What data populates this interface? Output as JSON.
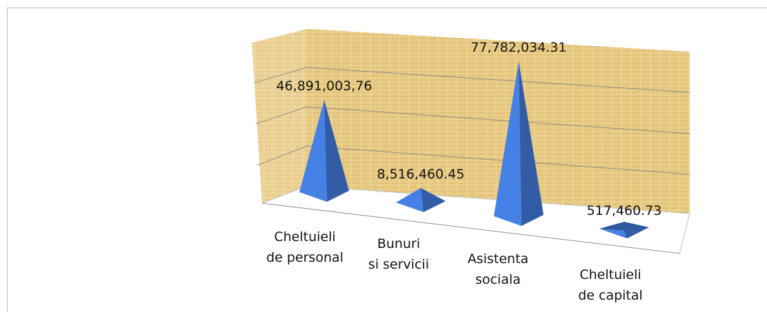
{
  "chart_data": {
    "type": "pyramid3d",
    "categories": [
      "Cheltuieli de personal",
      "Bunuri si servicii",
      "Asistenta sociala",
      "Cheltuieli de capital"
    ],
    "values": [
      46891003.76,
      8516460.45,
      77782034.31,
      517460.73
    ],
    "value_labels": [
      "46,891,003,76",
      "8,516,460.45",
      "77,782,034.31",
      "517,460.73"
    ],
    "color": "#3f74d0",
    "ylim": [
      0,
      90000000
    ]
  }
}
